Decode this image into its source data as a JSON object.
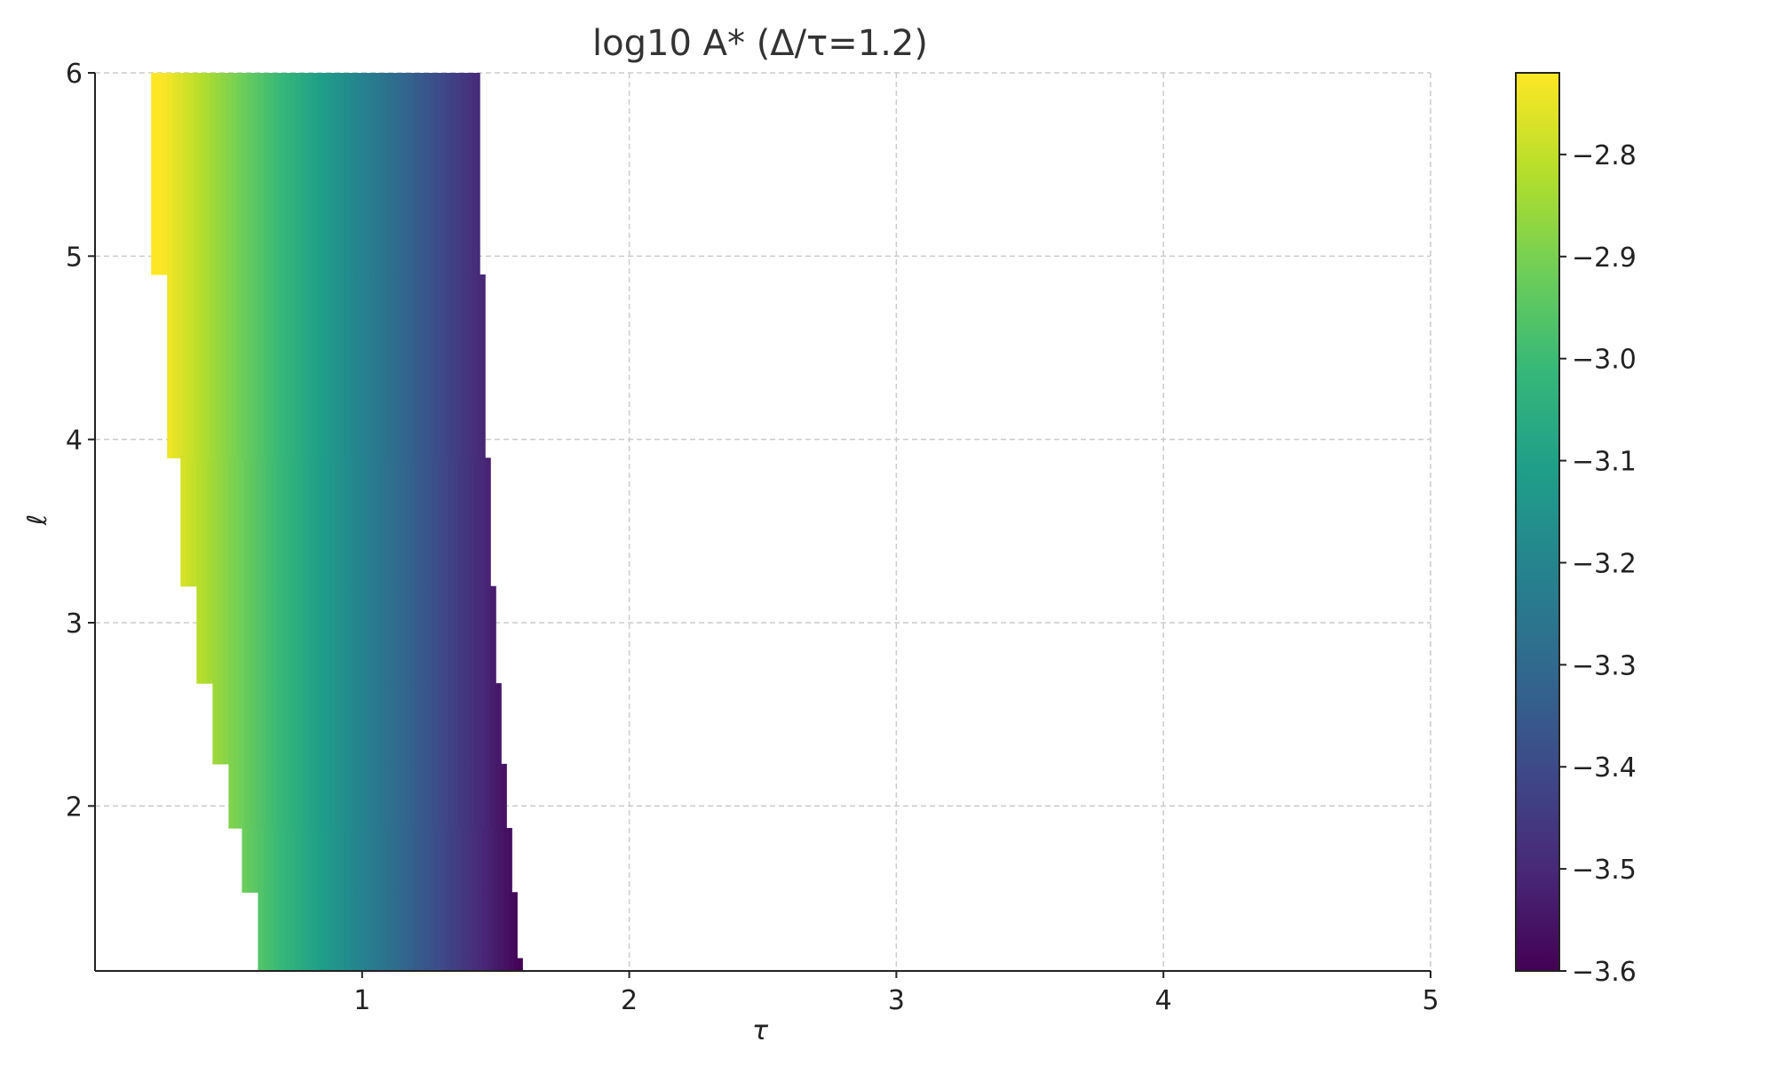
{
  "chart_data": {
    "type": "heatmap",
    "title": "log10 A* (Δ/τ=1.2)",
    "xlabel": "τ",
    "ylabel": "ℓ",
    "xlim": [
      0,
      5
    ],
    "ylim": [
      1.1,
      6
    ],
    "x_ticks": [
      {
        "value": 1,
        "label": "1"
      },
      {
        "value": 2,
        "label": "2"
      },
      {
        "value": 3,
        "label": "3"
      },
      {
        "value": 4,
        "label": "4"
      },
      {
        "value": 5,
        "label": "5"
      }
    ],
    "y_ticks": [
      {
        "value": 2,
        "label": "2"
      },
      {
        "value": 3,
        "label": "3"
      },
      {
        "value": 4,
        "label": "4"
      },
      {
        "value": 5,
        "label": "5"
      },
      {
        "value": 6,
        "label": "6"
      }
    ],
    "grid": true,
    "colormap": "viridis",
    "colormap_stops": [
      "#440154",
      "#482878",
      "#3e4989",
      "#31688e",
      "#26828e",
      "#1f9e89",
      "#35b779",
      "#6ece58",
      "#b5de2b",
      "#fde725"
    ],
    "colorbar": {
      "range": [
        -3.6,
        -2.72
      ],
      "ticks": [
        {
          "value": -2.8,
          "label": "−2.8"
        },
        {
          "value": -2.9,
          "label": "−2.9"
        },
        {
          "value": -3.0,
          "label": "−3.0"
        },
        {
          "value": -3.1,
          "label": "−3.1"
        },
        {
          "value": -3.2,
          "label": "−3.2"
        },
        {
          "value": -3.3,
          "label": "−3.3"
        },
        {
          "value": -3.4,
          "label": "−3.4"
        },
        {
          "value": -3.5,
          "label": "−3.5"
        },
        {
          "value": -3.6,
          "label": "−3.6"
        }
      ]
    },
    "value_model": {
      "tau_at_min": 1.6,
      "slope_per_tau": 0.65,
      "clip": [
        -3.6,
        -2.72
      ]
    },
    "tau_step": 0.02,
    "valid_region": [
      {
        "l_from": 1.1,
        "l_to": 1.17,
        "tau_from": 0.61,
        "tau_to": 1.6
      },
      {
        "l_from": 1.17,
        "l_to": 1.53,
        "tau_from": 0.61,
        "tau_to": 1.58
      },
      {
        "l_from": 1.53,
        "l_to": 1.88,
        "tau_from": 0.55,
        "tau_to": 1.56
      },
      {
        "l_from": 1.88,
        "l_to": 2.23,
        "tau_from": 0.5,
        "tau_to": 1.54
      },
      {
        "l_from": 2.23,
        "l_to": 2.67,
        "tau_from": 0.44,
        "tau_to": 1.52
      },
      {
        "l_from": 2.67,
        "l_to": 3.2,
        "tau_from": 0.38,
        "tau_to": 1.5
      },
      {
        "l_from": 3.2,
        "l_to": 3.9,
        "tau_from": 0.32,
        "tau_to": 1.48
      },
      {
        "l_from": 3.9,
        "l_to": 4.9,
        "tau_from": 0.27,
        "tau_to": 1.46
      },
      {
        "l_from": 4.9,
        "l_to": 6.0,
        "tau_from": 0.21,
        "tau_to": 1.44
      }
    ]
  }
}
